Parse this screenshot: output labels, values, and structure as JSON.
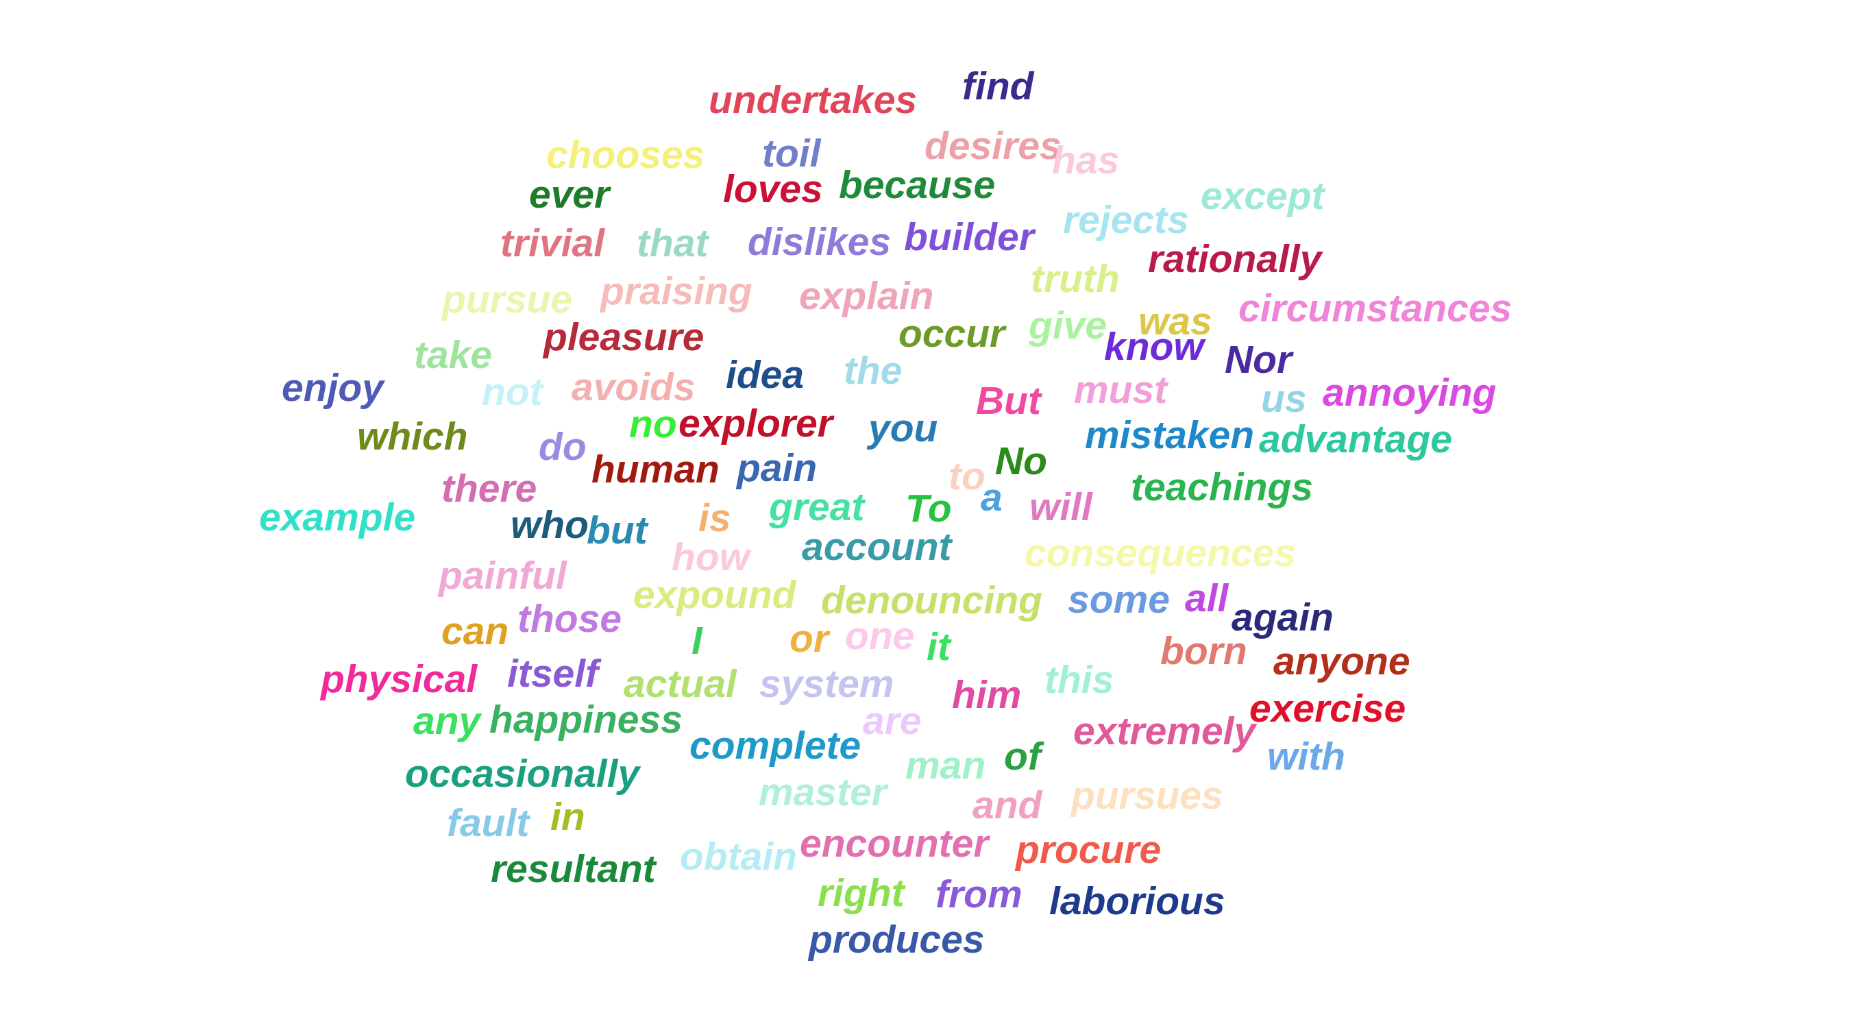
{
  "words": [
    {
      "text": "undertakes",
      "color": "#e0455a"
    },
    {
      "text": "find",
      "color": "#3b2a8c"
    },
    {
      "text": "chooses",
      "color": "#f5f07a"
    },
    {
      "text": "toil",
      "color": "#6f7fc8"
    },
    {
      "text": "desires",
      "color": "#eda0a8"
    },
    {
      "text": "has",
      "color": "#fbc8dc"
    },
    {
      "text": "ever",
      "color": "#1f7a2a"
    },
    {
      "text": "loves",
      "color": "#cc1038"
    },
    {
      "text": "because",
      "color": "#1f8a3a"
    },
    {
      "text": "except",
      "color": "#9ee8d8"
    },
    {
      "text": "rejects",
      "color": "#a6e4f0"
    },
    {
      "text": "trivial",
      "color": "#df7580"
    },
    {
      "text": "that",
      "color": "#9bd9c4"
    },
    {
      "text": "dislikes",
      "color": "#8f79d9"
    },
    {
      "text": "builder",
      "color": "#7f51d9"
    },
    {
      "text": "rationally",
      "color": "#b81a4a"
    },
    {
      "text": "truth",
      "color": "#d9ef8a"
    },
    {
      "text": "pursue",
      "color": "#e8f6b0"
    },
    {
      "text": "praising",
      "color": "#f6bcbc"
    },
    {
      "text": "explain",
      "color": "#f0a4b8"
    },
    {
      "text": "was",
      "color": "#dcc64a"
    },
    {
      "text": "circumstances",
      "color": "#ef84d8"
    },
    {
      "text": "give",
      "color": "#aaf2a0"
    },
    {
      "text": "pleasure",
      "color": "#b62a3a"
    },
    {
      "text": "occur",
      "color": "#6e9a2a"
    },
    {
      "text": "take",
      "color": "#9fe3a0"
    },
    {
      "text": "know",
      "color": "#6e2ad9"
    },
    {
      "text": "Nor",
      "color": "#4b2aa0"
    },
    {
      "text": "enjoy",
      "color": "#4e5ab4"
    },
    {
      "text": "not",
      "color": "#c4f2f9"
    },
    {
      "text": "avoids",
      "color": "#f4b0b0"
    },
    {
      "text": "idea",
      "color": "#1d4e8a"
    },
    {
      "text": "the",
      "color": "#a0dce8"
    },
    {
      "text": "must",
      "color": "#f29ed8"
    },
    {
      "text": "But",
      "color": "#f04aa0"
    },
    {
      "text": "us",
      "color": "#94d4e4"
    },
    {
      "text": "annoying",
      "color": "#da4ae0"
    },
    {
      "text": "which",
      "color": "#6e8a1a"
    },
    {
      "text": "no",
      "color": "#3aed3a"
    },
    {
      "text": "explorer",
      "color": "#c0102a"
    },
    {
      "text": "you",
      "color": "#2a7ab4"
    },
    {
      "text": "mistaken",
      "color": "#1e88c8"
    },
    {
      "text": "advantage",
      "color": "#2ec8a0"
    },
    {
      "text": "do",
      "color": "#9a8ae0"
    },
    {
      "text": "human",
      "color": "#a01a10"
    },
    {
      "text": "pain",
      "color": "#3a68b0"
    },
    {
      "text": "No",
      "color": "#2a8a1a"
    },
    {
      "text": "there",
      "color": "#d36eb0"
    },
    {
      "text": "to",
      "color": "#fcd0c0"
    },
    {
      "text": "a",
      "color": "#4aa0e0"
    },
    {
      "text": "teachings",
      "color": "#2ab450"
    },
    {
      "text": "example",
      "color": "#30e0c8"
    },
    {
      "text": "who",
      "color": "#1e5a7a"
    },
    {
      "text": "but",
      "color": "#2a8ab0"
    },
    {
      "text": "is",
      "color": "#f5b070"
    },
    {
      "text": "great",
      "color": "#46e0a0"
    },
    {
      "text": "To",
      "color": "#2ac040"
    },
    {
      "text": "will",
      "color": "#e07ac0"
    },
    {
      "text": "how",
      "color": "#fcc8dc"
    },
    {
      "text": "account",
      "color": "#3a9aa8"
    },
    {
      "text": "consequences",
      "color": "#f5f8a8"
    },
    {
      "text": "painful",
      "color": "#f0a8d4"
    },
    {
      "text": "expound",
      "color": "#dcea80"
    },
    {
      "text": "denouncing",
      "color": "#c6e06a"
    },
    {
      "text": "some",
      "color": "#6a9ae0"
    },
    {
      "text": "all",
      "color": "#c04ae0"
    },
    {
      "text": "again",
      "color": "#2a2a7a"
    },
    {
      "text": "can",
      "color": "#e0a020"
    },
    {
      "text": "those",
      "color": "#c07ae0"
    },
    {
      "text": "I",
      "color": "#3ad060"
    },
    {
      "text": "or",
      "color": "#f0b040"
    },
    {
      "text": "one",
      "color": "#fcc8ec"
    },
    {
      "text": "it",
      "color": "#3ae060"
    },
    {
      "text": "born",
      "color": "#e07a70"
    },
    {
      "text": "anyone",
      "color": "#b0301a"
    },
    {
      "text": "physical",
      "color": "#f02a9a"
    },
    {
      "text": "itself",
      "color": "#8a5ad4"
    },
    {
      "text": "actual",
      "color": "#b0e070"
    },
    {
      "text": "system",
      "color": "#c4c4f0"
    },
    {
      "text": "him",
      "color": "#e04aa0"
    },
    {
      "text": "this",
      "color": "#a0f0d8"
    },
    {
      "text": "exercise",
      "color": "#e0102a"
    },
    {
      "text": "any",
      "color": "#3ae060"
    },
    {
      "text": "happiness",
      "color": "#3ab060"
    },
    {
      "text": "are",
      "color": "#ecc8fc"
    },
    {
      "text": "extremely",
      "color": "#e05a9a"
    },
    {
      "text": "complete",
      "color": "#1e9ac8"
    },
    {
      "text": "of",
      "color": "#2aa040"
    },
    {
      "text": "with",
      "color": "#6aa8e8"
    },
    {
      "text": "occasionally",
      "color": "#1aa080"
    },
    {
      "text": "man",
      "color": "#a0f0c8"
    },
    {
      "text": "master",
      "color": "#b0f0d8"
    },
    {
      "text": "and",
      "color": "#f0a0c0"
    },
    {
      "text": "pursues",
      "color": "#fce0c0"
    },
    {
      "text": "fault",
      "color": "#88c8e8"
    },
    {
      "text": "in",
      "color": "#a0c020"
    },
    {
      "text": "encounter",
      "color": "#e070b0"
    },
    {
      "text": "obtain",
      "color": "#b4ecf4"
    },
    {
      "text": "procure",
      "color": "#f05a4a"
    },
    {
      "text": "resultant",
      "color": "#1a8a3a"
    },
    {
      "text": "right",
      "color": "#8ae04a"
    },
    {
      "text": "from",
      "color": "#8a5ad9"
    },
    {
      "text": "laborious",
      "color": "#1e3a8a"
    },
    {
      "text": "produces",
      "color": "#3a58a8"
    }
  ]
}
